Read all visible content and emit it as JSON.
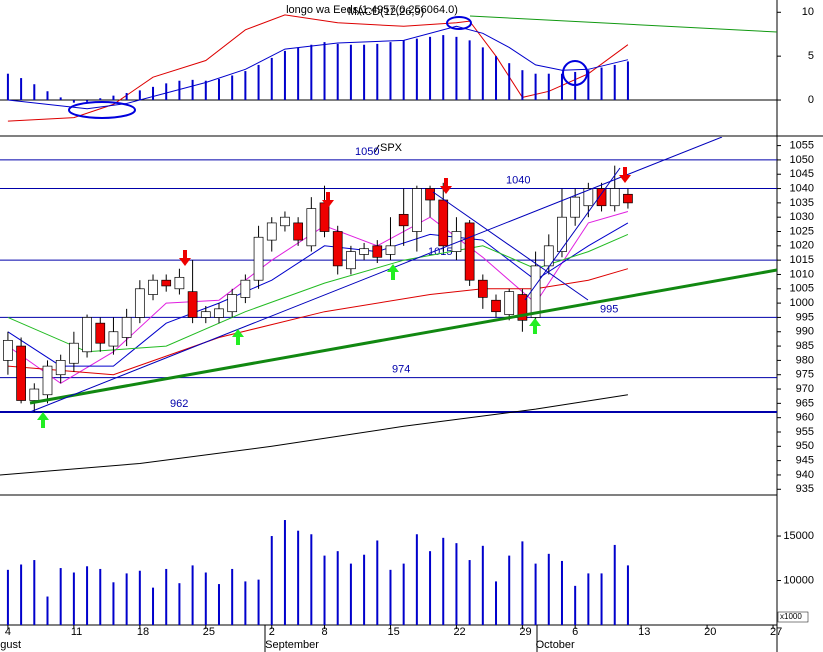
{
  "chart_data": [
    {
      "type": "bar",
      "title": "longo wa Eeds(1.4957(0.256064.0)",
      "subtitle": "MACD(12,26,9)",
      "x": [
        0,
        1,
        2,
        3,
        4,
        5,
        6,
        7,
        8,
        9,
        10,
        11,
        12,
        13,
        14,
        15,
        16,
        17,
        18,
        19,
        20,
        21,
        22,
        23,
        24,
        25,
        26,
        27,
        28,
        29,
        30,
        31,
        32,
        33,
        34,
        35,
        36,
        37,
        38,
        39,
        40,
        41,
        42,
        43,
        44,
        45,
        46,
        47
      ],
      "values": [
        3,
        2.5,
        1.8,
        1,
        0.3,
        -0.3,
        -0.2,
        0.2,
        0.5,
        0.8,
        1.1,
        1.5,
        1.9,
        2.2,
        2.3,
        2.2,
        2.4,
        2.8,
        3.3,
        4,
        4.8,
        5.6,
        6,
        6.3,
        6.6,
        6.4,
        6.3,
        6.3,
        6.4,
        6.6,
        6.8,
        7,
        7.2,
        7.4,
        7.2,
        6.8,
        6,
        5,
        4.2,
        3.4,
        3,
        3,
        3,
        3.2,
        3.4,
        3.7,
        4,
        4.4
      ],
      "color": "#0000cc",
      "series": [
        {
          "color": "#dd0000",
          "x": [
            0,
            5,
            8,
            11,
            15,
            18,
            21,
            25,
            30,
            34,
            35,
            37,
            39,
            41,
            44,
            47
          ],
          "values": [
            -2.4,
            -2,
            -0.5,
            2.6,
            4.5,
            8,
            9.7,
            8.8,
            8.4,
            8.8,
            9,
            5,
            0.3,
            1,
            3,
            6.3
          ]
        },
        {
          "color": "#0000cc",
          "x": [
            0,
            3,
            6,
            9,
            12,
            15,
            18,
            21,
            25,
            30,
            34,
            36,
            38,
            40,
            42,
            44,
            47
          ],
          "values": [
            0,
            -0.5,
            -1,
            -0.4,
            0.8,
            2,
            3.5,
            5.8,
            6.5,
            6.8,
            8.4,
            7.6,
            6,
            4,
            3.4,
            3.5,
            4.6
          ]
        }
      ],
      "xlim": [
        -0.6,
        58.3
      ],
      "ylim": [
        -4.1,
        11.4
      ],
      "yticks": [
        0,
        5,
        10
      ]
    },
    {
      "type": "candlestick",
      "label": "SPX",
      "x": [
        0,
        1,
        2,
        3,
        4,
        5,
        6,
        7,
        8,
        9,
        10,
        11,
        12,
        13,
        14,
        15,
        16,
        17,
        18,
        19,
        20,
        21,
        22,
        23,
        24,
        25,
        26,
        27,
        28,
        29,
        30,
        31,
        32,
        33,
        34,
        35,
        36,
        37,
        38,
        39,
        40,
        41,
        42,
        43,
        44,
        45,
        46,
        47
      ],
      "open": [
        980,
        985,
        966,
        968,
        975,
        979,
        983,
        993,
        985,
        988,
        995,
        1003,
        1008,
        1005,
        1004,
        995,
        995,
        997,
        1002,
        1008,
        1022,
        1027,
        1028,
        1020,
        1035,
        1025,
        1012,
        1017,
        1020,
        1017,
        1031,
        1025,
        1040,
        1036,
        1018,
        1028,
        1008,
        1001,
        996,
        1003,
        995,
        1013,
        1018,
        1030,
        1034,
        1040,
        1034,
        1038
      ],
      "high": [
        990,
        988,
        972,
        980,
        982,
        990,
        996,
        995,
        995,
        998,
        1008,
        1010,
        1010,
        1012,
        1015,
        999,
        1000,
        1005,
        1010,
        1027,
        1030,
        1032,
        1030,
        1037,
        1041,
        1027,
        1020,
        1021,
        1022,
        1030,
        1040,
        1041,
        1041,
        1042,
        1030,
        1029,
        1010,
        1003,
        1005,
        1005,
        1018,
        1024,
        1040,
        1040,
        1042,
        1042,
        1048,
        1040
      ],
      "low": [
        975,
        965,
        962,
        965,
        972,
        976,
        981,
        983,
        982,
        985,
        993,
        1001,
        1004,
        1003,
        993,
        993,
        993,
        995,
        1000,
        1005,
        1018,
        1025,
        1020,
        1018,
        1023,
        1010,
        1010,
        1015,
        1014,
        1015,
        1020,
        1018,
        1030,
        1018,
        1015,
        1006,
        998,
        995,
        994,
        990,
        994,
        1010,
        1016,
        1027,
        1030,
        1032,
        1032,
        1033
      ],
      "close": [
        987,
        966,
        970,
        978,
        980,
        986,
        995,
        986,
        990,
        995,
        1005,
        1008,
        1006,
        1009,
        995,
        997,
        998,
        1003,
        1008,
        1023,
        1028,
        1030,
        1022,
        1033,
        1025,
        1013,
        1018,
        1019,
        1016,
        1020,
        1027,
        1040,
        1036,
        1020,
        1025,
        1008,
        1002,
        997,
        1004,
        994,
        1013,
        1020,
        1030,
        1037,
        1040,
        1034,
        1040,
        1035
      ],
      "up_color": "#ffffff",
      "down_color": "#ee0000",
      "levels": [
        1050,
        1040,
        1015,
        995,
        974,
        962
      ],
      "level_color": "#0000aa",
      "series": [
        {
          "color": "#e020e0",
          "x": [
            0,
            4,
            8,
            12,
            16,
            20,
            24,
            28,
            32,
            36,
            40,
            44,
            47
          ],
          "values": [
            985,
            972,
            983,
            1000,
            1001,
            1015,
            1027,
            1020,
            1030,
            1016,
            1000,
            1028,
            1032
          ]
        },
        {
          "color": "#0000cc",
          "x": [
            0,
            4,
            8,
            12,
            16,
            20,
            24,
            28,
            32,
            36,
            40,
            44,
            47
          ],
          "values": [
            990,
            978,
            978,
            993,
            1000,
            1008,
            1020,
            1018,
            1024,
            1022,
            1008,
            1020,
            1028
          ]
        },
        {
          "color": "#22bb22",
          "x": [
            0,
            6,
            12,
            18,
            24,
            30,
            36,
            40,
            44,
            47
          ],
          "values": [
            995,
            983,
            985,
            997,
            1007,
            1015,
            1020,
            1012,
            1018,
            1024
          ]
        },
        {
          "color": "#dd0000",
          "x": [
            0,
            8,
            16,
            24,
            32,
            36,
            40,
            44,
            47
          ],
          "values": [
            978,
            975,
            988,
            997,
            1003,
            1005,
            1005,
            1008,
            1012
          ]
        },
        {
          "color": "#000000",
          "x": [
            -0.6,
            10,
            20,
            30,
            40,
            47
          ],
          "values": [
            940,
            944,
            950,
            957,
            963,
            968
          ]
        }
      ],
      "xlim": [
        -0.6,
        58.3
      ],
      "ylim": [
        933,
        1058
      ],
      "yticks": [
        935,
        940,
        945,
        950,
        955,
        960,
        965,
        970,
        975,
        980,
        985,
        990,
        995,
        1000,
        1005,
        1010,
        1015,
        1020,
        1025,
        1030,
        1035,
        1040,
        1045,
        1050,
        1055
      ]
    },
    {
      "type": "bar",
      "x": [
        0,
        1,
        2,
        3,
        4,
        5,
        6,
        7,
        8,
        9,
        10,
        11,
        12,
        13,
        14,
        15,
        16,
        17,
        18,
        19,
        20,
        21,
        22,
        23,
        24,
        25,
        26,
        27,
        28,
        29,
        30,
        31,
        32,
        33,
        34,
        35,
        36,
        37,
        38,
        39,
        40,
        41,
        42,
        43,
        44,
        45,
        46,
        47
      ],
      "values": [
        11200,
        11800,
        12300,
        8200,
        11400,
        10900,
        11600,
        11300,
        9800,
        10800,
        11100,
        9200,
        11300,
        9700,
        11700,
        10900,
        9600,
        11300,
        9900,
        10100,
        15000,
        16800,
        15600,
        15200,
        12800,
        13300,
        11900,
        12900,
        14500,
        11200,
        11900,
        15200,
        13300,
        14800,
        14200,
        12300,
        13900,
        9900,
        12800,
        14400,
        11900,
        13000,
        12200,
        9400,
        10800,
        10800,
        14000,
        11700
      ],
      "color": "#0000cc",
      "ylim": [
        5000,
        19500
      ],
      "yticks": [
        10000,
        15000
      ],
      "unit_label": "x1000",
      "xlim": [
        -0.6,
        58.3
      ],
      "xticks": [
        {
          "value": 0,
          "label": "4"
        },
        {
          "value": 5,
          "label": "11"
        },
        {
          "value": 10,
          "label": "18"
        },
        {
          "value": 15,
          "label": "25"
        },
        {
          "value": 20,
          "label": "2"
        },
        {
          "value": 24,
          "label": "8"
        },
        {
          "value": 29,
          "label": "15"
        },
        {
          "value": 34,
          "label": "22"
        },
        {
          "value": 39,
          "label": "29"
        },
        {
          "value": 43,
          "label": "6"
        },
        {
          "value": 48,
          "label": "13"
        },
        {
          "value": 53,
          "label": "20"
        },
        {
          "value": 58,
          "label": "27"
        }
      ],
      "month_ticks": [
        {
          "value": -1.6,
          "label": "August"
        },
        {
          "value": 19.5,
          "label": "September"
        },
        {
          "value": 40,
          "label": "October"
        }
      ]
    }
  ]
}
